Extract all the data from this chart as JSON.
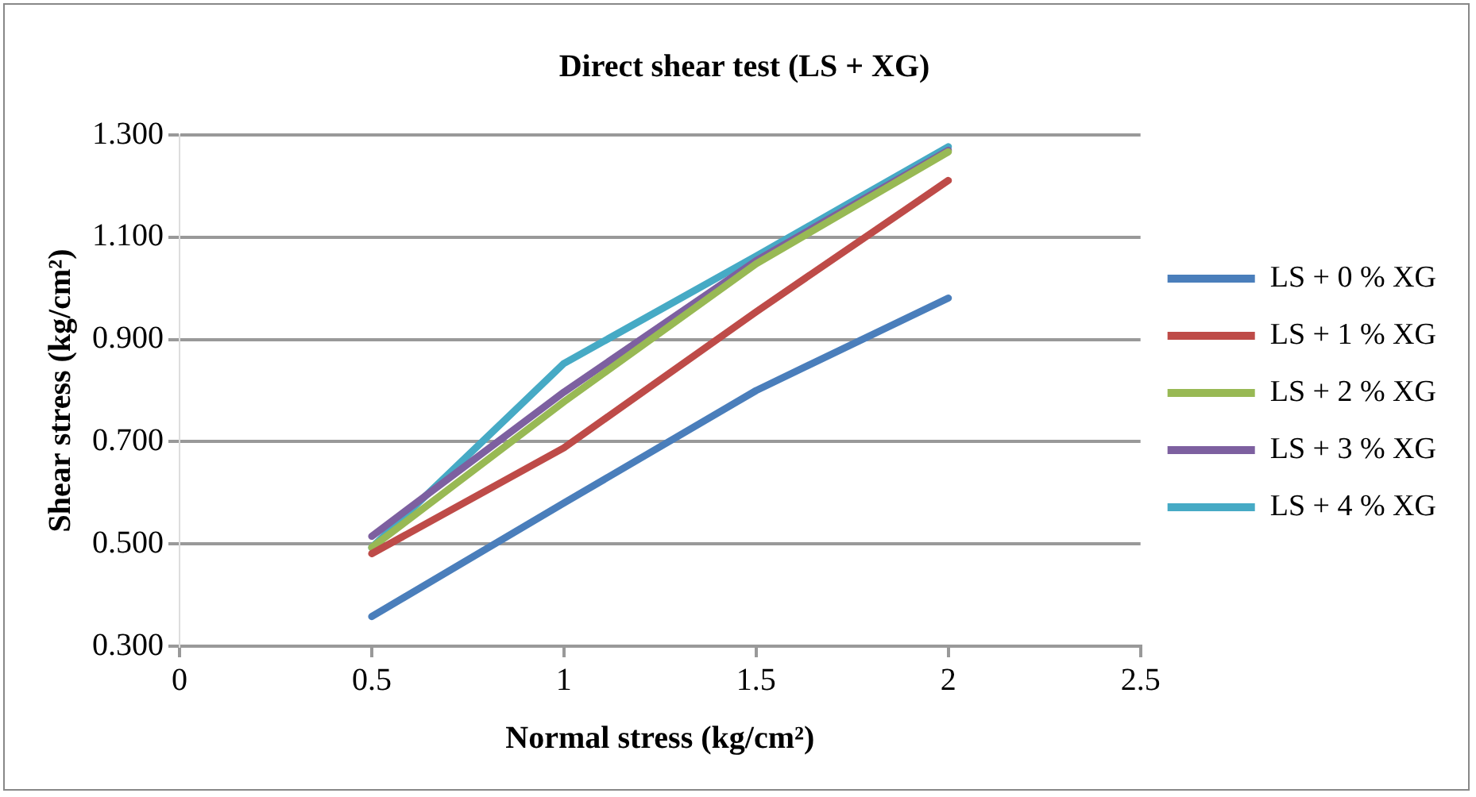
{
  "chart_data": {
    "type": "line",
    "title": "Direct shear test (LS + XG)",
    "xlabel": "Normal stress (kg/cm²)",
    "ylabel": "Shear stress (kg/cm²)",
    "x": [
      0.5,
      1,
      1.5,
      2
    ],
    "series": [
      {
        "name": "LS + 0 % XG",
        "color": "#4a7ebb",
        "values": [
          0.358,
          0.58,
          0.8,
          0.981
        ]
      },
      {
        "name": "LS + 1 % XG",
        "color": "#be4b48",
        "values": [
          0.481,
          0.688,
          0.954,
          1.211
        ]
      },
      {
        "name": "LS + 2 % XG",
        "color": "#98b954",
        "values": [
          0.493,
          0.778,
          1.048,
          1.267
        ]
      },
      {
        "name": "LS + 3 % XG",
        "color": "#7d60a0",
        "values": [
          0.515,
          0.797,
          1.054,
          1.27
        ]
      },
      {
        "name": "LS + 4 % XG",
        "color": "#46aac5",
        "values": [
          0.493,
          0.853,
          1.063,
          1.277
        ]
      }
    ],
    "xlim": [
      0,
      2.5
    ],
    "xticks": [
      0,
      0.5,
      1,
      1.5,
      2,
      2.5
    ],
    "ylim": [
      0.3,
      1.3
    ],
    "yticks": [
      {
        "value": 0.3,
        "label": "0.300"
      },
      {
        "value": 0.5,
        "label": "0.500"
      },
      {
        "value": 0.7,
        "label": "0.700"
      },
      {
        "value": 0.9,
        "label": "0.900"
      },
      {
        "value": 1.1,
        "label": "1.100"
      },
      {
        "value": 1.3,
        "label": "1.300"
      }
    ],
    "grid": "y",
    "legend": "right",
    "marker": "none",
    "line_style": "solid"
  }
}
